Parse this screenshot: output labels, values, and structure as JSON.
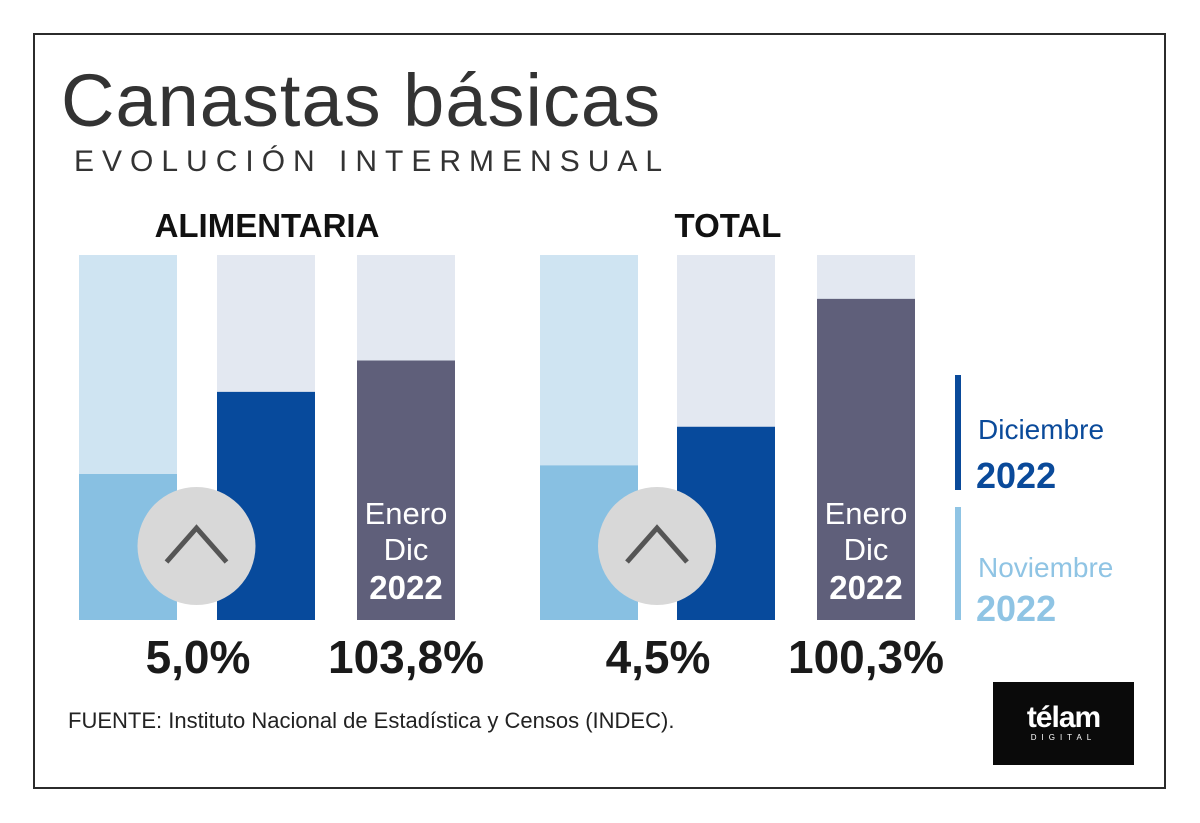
{
  "title": "Canastas básicas",
  "subtitle": "EVOLUCIÓN INTERMENSUAL",
  "source": "FUENTE: Instituto Nacional de Estadística y Censos (INDEC).",
  "logo": {
    "main": "télam",
    "sub": "DIGITAL"
  },
  "legend": [
    {
      "label": "Diciembre",
      "year": "2022",
      "color": "#0a4a9a"
    },
    {
      "label": "Noviembre",
      "year": "2022",
      "color": "#8fc4e4"
    }
  ],
  "colors": {
    "nov": "#88c0e2",
    "nov_bg": "#cfe4f2",
    "dic": "#074a9c",
    "bg": "#e3e8f1",
    "annual": "#5f5f7a",
    "circle": "#d8d8d8",
    "arrow": "#555555"
  },
  "chart_data": [
    {
      "type": "bar",
      "title": "ALIMENTARIA",
      "categories": [
        "Noviembre 2022",
        "Diciembre 2022",
        "Enero Dic 2022"
      ],
      "values": [
        3.2,
        5.0,
        103.8
      ],
      "monthly_ylim": [
        0,
        8
      ],
      "annual_ylim": [
        0,
        146
      ],
      "value_label": "5,0%",
      "annual_label": "103,8%",
      "annual_text": [
        "Enero",
        "Dic",
        "2022"
      ]
    },
    {
      "type": "bar",
      "title": "TOTAL",
      "categories": [
        "Noviembre 2022",
        "Diciembre 2022",
        "Enero Dic 2022"
      ],
      "values": [
        3.6,
        4.5,
        100.3
      ],
      "monthly_ylim": [
        0,
        8.5
      ],
      "annual_ylim": [
        0,
        114
      ],
      "value_label": "4,5%",
      "annual_label": "100,3%",
      "annual_text": [
        "Enero",
        "Dic",
        "2022"
      ]
    }
  ]
}
